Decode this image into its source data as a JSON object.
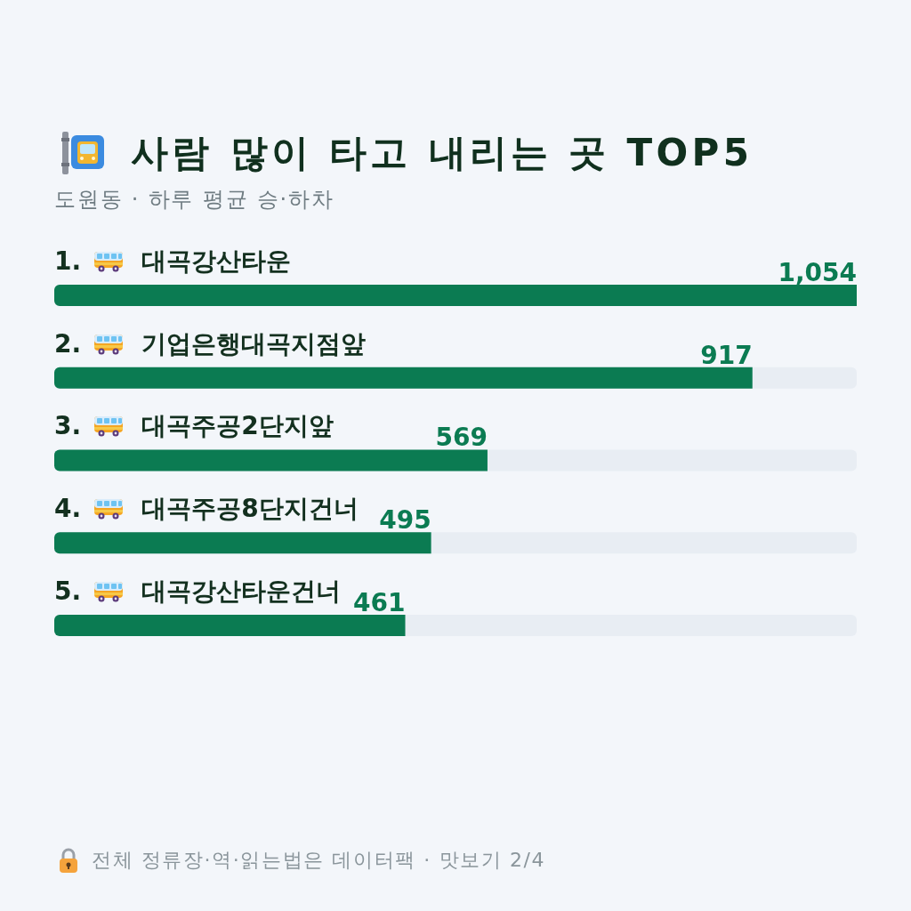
{
  "chart_data": {
    "type": "bar",
    "orientation": "horizontal",
    "title": "사람 많이 타고 내리는 곳 TOP5",
    "subtitle": "도원동 · 하루 평균 승·하차",
    "categories": [
      "1. 대곡강산타운",
      "2. 기업은행대곡지점앞",
      "3. 대곡주공2단지앞",
      "4. 대곡주공8단지건너",
      "5. 대곡강산타운건너"
    ],
    "values": [
      1054,
      917,
      569,
      495,
      461
    ],
    "value_labels": [
      "1,054",
      "917",
      "569",
      "495",
      "461"
    ],
    "color": "#0b7b52",
    "tick_labels": "y",
    "annotations": [
      "전체 정류장·역·읽는법은 데이터팩 · 맛보기 2/4"
    ]
  }
}
